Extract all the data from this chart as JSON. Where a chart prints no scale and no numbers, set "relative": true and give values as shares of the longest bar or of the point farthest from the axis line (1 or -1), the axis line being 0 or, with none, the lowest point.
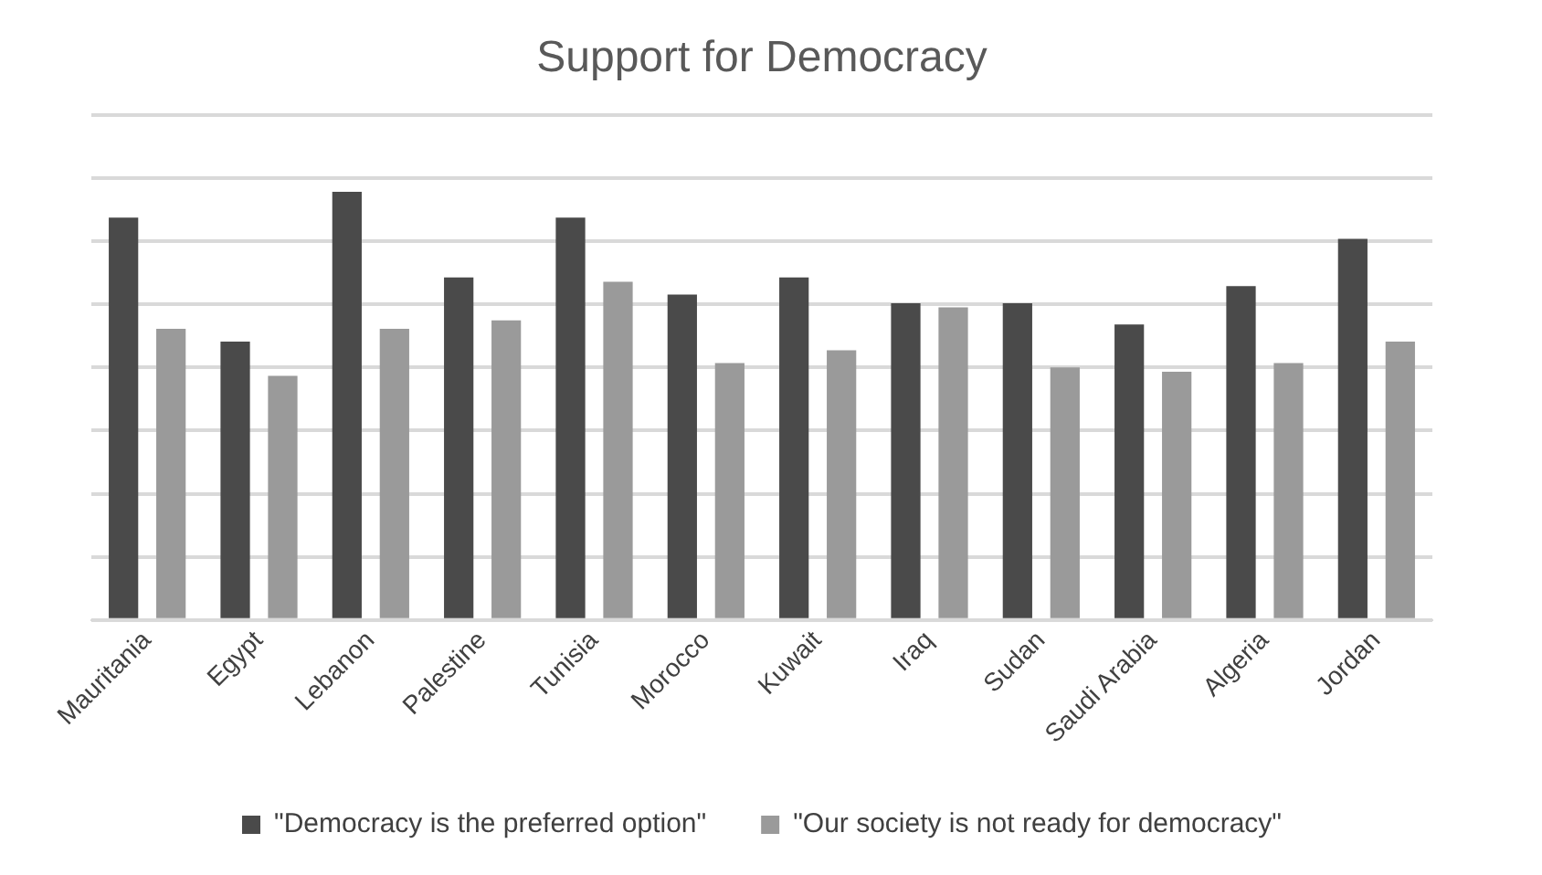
{
  "chart_data": {
    "type": "bar",
    "title": "Support for Democracy",
    "relative": true,
    "grid": "y",
    "legend": "bottom",
    "categories": [
      "Mauritania",
      "Egypt",
      "Lebanon",
      "Palestine",
      "Tunisia",
      "Morocco",
      "Kuwait",
      "Iraq",
      "Sudan",
      "Saudi Arabia",
      "Algeria",
      "Jordan"
    ],
    "series": [
      {
        "name": "\"Democracy is the preferred option\"",
        "color": "#4a4a4a",
        "values": [
          0.94,
          0.65,
          1,
          0.8,
          0.94,
          0.76,
          0.8,
          0.74,
          0.74,
          0.69,
          0.78,
          0.89
        ]
      },
      {
        "name": "\"Our society is not ready for democracy\"",
        "color": "#9a9a9a",
        "values": [
          0.68,
          0.57,
          0.68,
          0.7,
          0.79,
          0.6,
          0.63,
          0.73,
          0.59,
          0.58,
          0.6,
          0.65
        ]
      }
    ]
  }
}
